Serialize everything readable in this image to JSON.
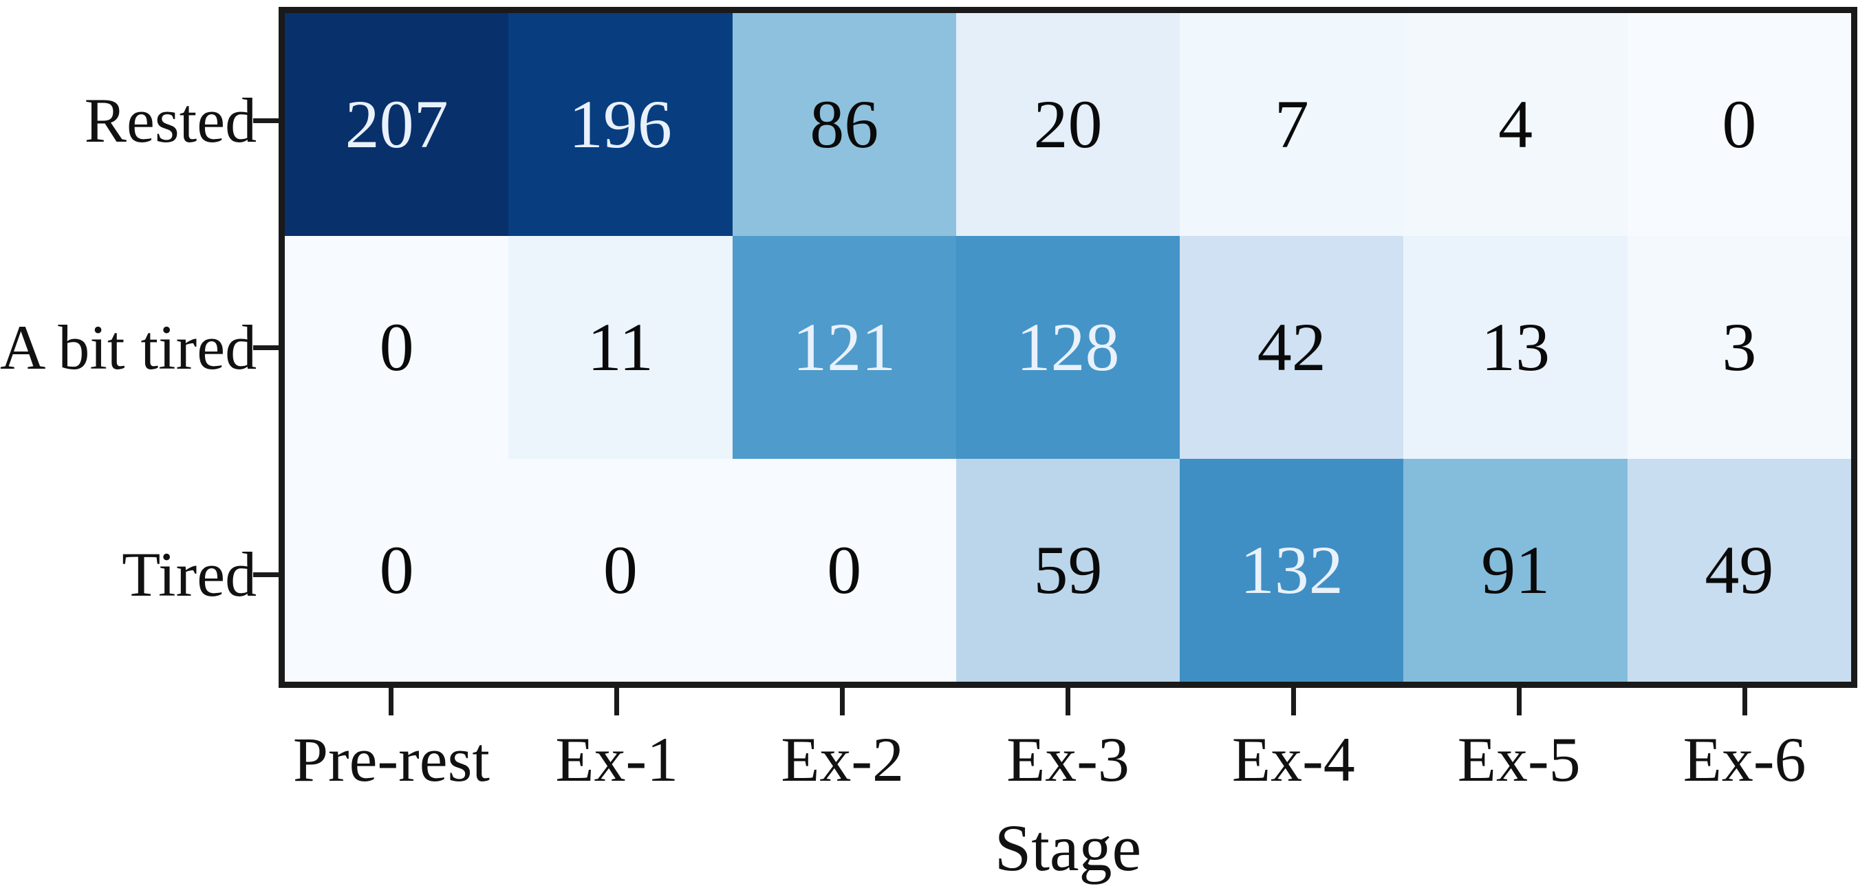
{
  "figure": {
    "background": "#ffffff",
    "spine_color": "#1a1a1a",
    "tick_color": "#1a1a1a",
    "text_color": "#111111"
  },
  "chart_data": {
    "type": "heatmap",
    "title": "",
    "xlabel": "Stage",
    "ylabel": "",
    "x_categories": [
      "Pre-rest",
      "Ex-1",
      "Ex-2",
      "Ex-3",
      "Ex-4",
      "Ex-5",
      "Ex-6"
    ],
    "y_categories": [
      "Rested",
      "A bit tired",
      "Tired"
    ],
    "values": [
      [
        207,
        196,
        86,
        20,
        7,
        4,
        0
      ],
      [
        0,
        11,
        121,
        128,
        42,
        13,
        3
      ],
      [
        0,
        0,
        0,
        59,
        132,
        91,
        49
      ]
    ],
    "vmin": 0,
    "vmax": 207,
    "colormap": "Blues",
    "annotations_shown": true,
    "grid": false,
    "legend": "none",
    "cell_colors": [
      [
        "#08306b",
        "#083e80",
        "#8ec1dd",
        "#e4eff9",
        "#f0f7fd",
        "#f3f8fd",
        "#f7fbff"
      ],
      [
        "#f7fbff",
        "#ecf4fc",
        "#4f9bcb",
        "#4494c7",
        "#cfe1f2",
        "#eaf3fb",
        "#f4f9fe"
      ],
      [
        "#f7fbff",
        "#f7fbff",
        "#f7fbff",
        "#bbd6eb",
        "#3f8fc4",
        "#84bcdb",
        "#c9ddf0"
      ]
    ],
    "cell_text_colors": [
      [
        "#e9f1fb",
        "#e9f1fb",
        "#0a0a0a",
        "#0a0a0a",
        "#0a0a0a",
        "#0a0a0a",
        "#0a0a0a"
      ],
      [
        "#0a0a0a",
        "#0a0a0a",
        "#e9f1fb",
        "#e9f1fb",
        "#0a0a0a",
        "#0a0a0a",
        "#0a0a0a"
      ],
      [
        "#0a0a0a",
        "#0a0a0a",
        "#0a0a0a",
        "#0a0a0a",
        "#e9f1fb",
        "#0a0a0a",
        "#0a0a0a"
      ]
    ]
  }
}
